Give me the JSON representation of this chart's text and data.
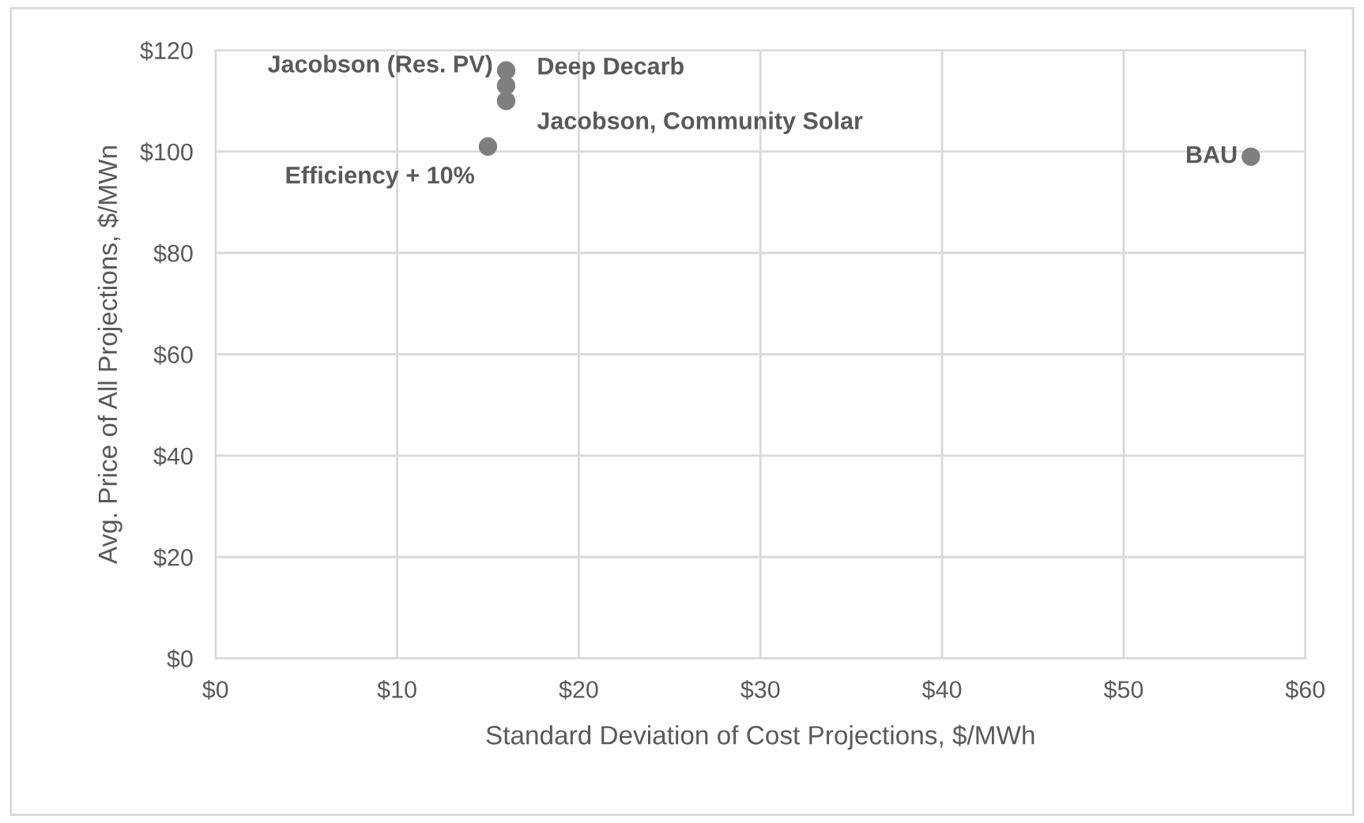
{
  "chart_data": {
    "type": "scatter",
    "xlabel": "Standard Deviation of Cost Projections, $/MWh",
    "ylabel": "Avg. Price of All Projections, $/MWn",
    "x": [
      16,
      16,
      16,
      15,
      57
    ],
    "series": [
      {
        "color": "#7f7f7f",
        "values": [
          116,
          113,
          110,
          101,
          99
        ]
      }
    ],
    "marker": "circle",
    "annotations": [
      {
        "text": "Jacobson (Res. PV)",
        "x": 16,
        "y": 116
      },
      {
        "text": "Deep Decarb",
        "x": 16,
        "y": 113
      },
      {
        "text": "Jacobson, Community Solar",
        "x": 16,
        "y": 110
      },
      {
        "text": "Efficiency + 10%",
        "x": 15,
        "y": 101
      },
      {
        "text": "BAU",
        "x": 57,
        "y": 99
      }
    ],
    "xlim": [
      0,
      60
    ],
    "ylim": [
      0,
      120
    ],
    "xticks": [
      {
        "value": 0,
        "label": "$0"
      },
      {
        "value": 10,
        "label": "$10"
      },
      {
        "value": 20,
        "label": "$20"
      },
      {
        "value": 30,
        "label": "$30"
      },
      {
        "value": 40,
        "label": "$40"
      },
      {
        "value": 50,
        "label": "$50"
      },
      {
        "value": 60,
        "label": "$60"
      }
    ],
    "yticks": [
      {
        "value": 0,
        "label": "$0"
      },
      {
        "value": 20,
        "label": "$20"
      },
      {
        "value": 40,
        "label": "$40"
      },
      {
        "value": 60,
        "label": "$60"
      },
      {
        "value": 80,
        "label": "$80"
      },
      {
        "value": 100,
        "label": "$100"
      },
      {
        "value": 120,
        "label": "$120"
      }
    ],
    "grid": true
  }
}
